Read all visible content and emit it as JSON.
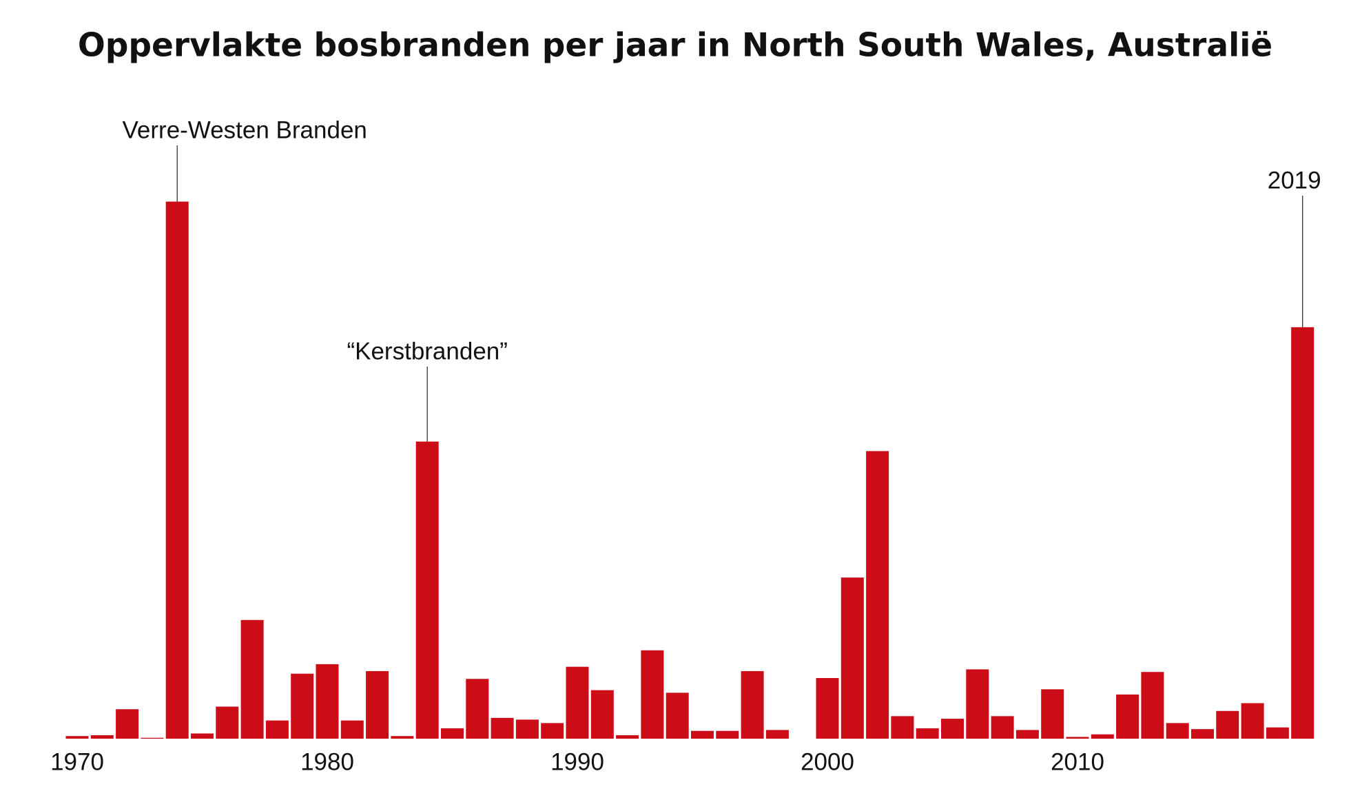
{
  "chart_data": {
    "type": "bar",
    "title": "Oppervlakte bosbranden per jaar in North South Wales, Australië",
    "x": [
      1970,
      1971,
      1972,
      1973,
      1974,
      1975,
      1976,
      1977,
      1978,
      1979,
      1980,
      1981,
      1982,
      1983,
      1984,
      1985,
      1986,
      1987,
      1988,
      1989,
      1990,
      1991,
      1992,
      1993,
      1994,
      1995,
      1996,
      1997,
      1998,
      1999,
      2000,
      2001,
      2002,
      2003,
      2004,
      2005,
      2006,
      2007,
      2008,
      2009,
      2010,
      2011,
      2012,
      2013,
      2014,
      2015,
      2016,
      2017,
      2018,
      2019
    ],
    "values": [
      3,
      4,
      34,
      1,
      620,
      6,
      37,
      137,
      21,
      75,
      86,
      21,
      78,
      3,
      343,
      12,
      69,
      24,
      22,
      18,
      83,
      56,
      4,
      102,
      53,
      9,
      9,
      78,
      10,
      0,
      70,
      186,
      332,
      26,
      12,
      23,
      80,
      26,
      10,
      57,
      2,
      5,
      51,
      77,
      18,
      11,
      32,
      41,
      13,
      475
    ],
    "color": "#cc0c16",
    "ylim": [
      0,
      700
    ],
    "xticks": [
      1970,
      1980,
      1990,
      2000,
      2010
    ],
    "annotations": [
      {
        "text": "Verre-Westen Branden",
        "x": 1974
      },
      {
        "text": "“Kerstbranden”",
        "x": 1984
      },
      {
        "text": "2019",
        "x": 2019
      }
    ]
  }
}
